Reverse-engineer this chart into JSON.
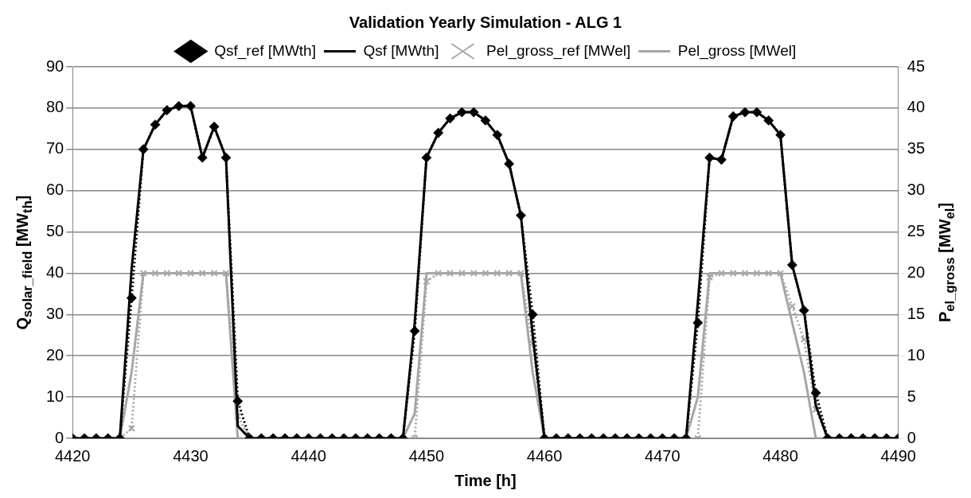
{
  "chart_data": {
    "type": "line",
    "title": "Validation Yearly Simulation - ALG 1",
    "xlabel": "Time [h]",
    "ylabel": "Q$_{solar_field}$ [MW$_{th}$]",
    "y2label": "P$_{el_gross}$ [MW$_{el}$]",
    "x": [
      4420,
      4421,
      4422,
      4423,
      4424,
      4425,
      4426,
      4427,
      4428,
      4429,
      4430,
      4431,
      4432,
      4433,
      4434,
      4435,
      4436,
      4437,
      4438,
      4439,
      4440,
      4441,
      4442,
      4443,
      4444,
      4445,
      4446,
      4447,
      4448,
      4449,
      4450,
      4451,
      4452,
      4453,
      4454,
      4455,
      4456,
      4457,
      4458,
      4459,
      4460,
      4461,
      4462,
      4463,
      4464,
      4465,
      4466,
      4467,
      4468,
      4469,
      4470,
      4471,
      4472,
      4473,
      4474,
      4475,
      4476,
      4477,
      4478,
      4479,
      4480,
      4481,
      4482,
      4483,
      4484,
      4485,
      4486,
      4487,
      4488,
      4489,
      4490
    ],
    "series": [
      {
        "name": "Qsf_ref [MWth]",
        "color": "#000000",
        "marker": "diamond",
        "line_style": "dotted",
        "values": [
          0,
          0,
          0,
          0,
          0,
          34,
          70,
          76,
          79.5,
          80.5,
          80.5,
          68,
          75.5,
          68,
          9,
          0,
          0,
          0,
          0,
          0,
          0,
          0,
          0,
          0,
          0,
          0,
          0,
          0,
          0,
          26,
          68,
          74,
          77.5,
          79,
          79,
          77,
          73.5,
          66.5,
          54,
          30,
          0,
          0,
          0,
          0,
          0,
          0,
          0,
          0,
          0,
          0,
          0,
          0,
          0,
          28,
          68,
          67.5,
          78,
          79,
          79,
          77,
          73.5,
          42,
          31,
          11,
          0,
          0,
          0,
          0,
          0,
          0,
          0
        ]
      },
      {
        "name": "Qsf [MWth]",
        "color": "#000000",
        "marker": "none",
        "line_style": "solid",
        "values": [
          0,
          0,
          0,
          0,
          0,
          41,
          70,
          76,
          79.5,
          80.5,
          80.5,
          68,
          75.5,
          68,
          3,
          0,
          0,
          0,
          0,
          0,
          0,
          0,
          0,
          0,
          0,
          0,
          0,
          0,
          0,
          28,
          68,
          74,
          77.5,
          79,
          79,
          77,
          73.5,
          66.5,
          54,
          25,
          0,
          0,
          0,
          0,
          0,
          0,
          0,
          0,
          0,
          0,
          0,
          0,
          0,
          33,
          68,
          67.5,
          78,
          79,
          79,
          77,
          73.5,
          42,
          31,
          8,
          0,
          0,
          0,
          0,
          0,
          0,
          0
        ]
      },
      {
        "name": "Pel_gross_ref [MWel]",
        "color": "#a6a6a6",
        "axis": "y2",
        "marker": "cross",
        "line_style": "dotted",
        "values": [
          0,
          0,
          0,
          0,
          0,
          1.2,
          20,
          20,
          20,
          20,
          20,
          20,
          20,
          20,
          2.7,
          0,
          0,
          0,
          0,
          0,
          0,
          0,
          0,
          0,
          0,
          0,
          0,
          0,
          0,
          0,
          19,
          20,
          20,
          20,
          20,
          20,
          20,
          20,
          20,
          11.5,
          0,
          0,
          0,
          0,
          0,
          0,
          0,
          0,
          0,
          0,
          0,
          0,
          0,
          0,
          19.5,
          20,
          20,
          20,
          20,
          20,
          20,
          16,
          12,
          3.5,
          0,
          0,
          0,
          0,
          0,
          0,
          0
        ]
      },
      {
        "name": "Pel_gross [MWel]",
        "color": "#a6a6a6",
        "axis": "y2",
        "marker": "none",
        "line_style": "solid",
        "values": [
          0,
          0,
          0,
          0,
          0,
          8,
          20,
          20,
          20,
          20,
          20,
          20,
          20,
          20,
          0,
          0,
          0,
          0,
          0,
          0,
          0,
          0,
          0,
          0,
          0,
          0,
          0,
          0,
          0,
          3,
          20,
          20,
          20,
          20,
          20,
          20,
          20,
          20,
          20,
          8,
          0,
          0,
          0,
          0,
          0,
          0,
          0,
          0,
          0,
          0,
          0,
          0,
          0,
          5,
          20,
          20,
          20,
          20,
          20,
          20,
          20,
          14,
          8,
          0,
          0,
          0,
          0,
          0,
          0,
          0,
          0
        ]
      }
    ],
    "xlim": [
      4420,
      4490
    ],
    "xticks": [
      4420,
      4430,
      4440,
      4450,
      4460,
      4470,
      4480,
      4490
    ],
    "ylim": [
      0,
      90
    ],
    "yticks": [
      0,
      10,
      20,
      30,
      40,
      50,
      60,
      70,
      80,
      90
    ],
    "y2lim": [
      0,
      45
    ],
    "y2ticks": [
      0,
      5,
      10,
      15,
      20,
      25,
      30,
      35,
      40,
      45
    ],
    "grid": "y",
    "legend": "top"
  }
}
